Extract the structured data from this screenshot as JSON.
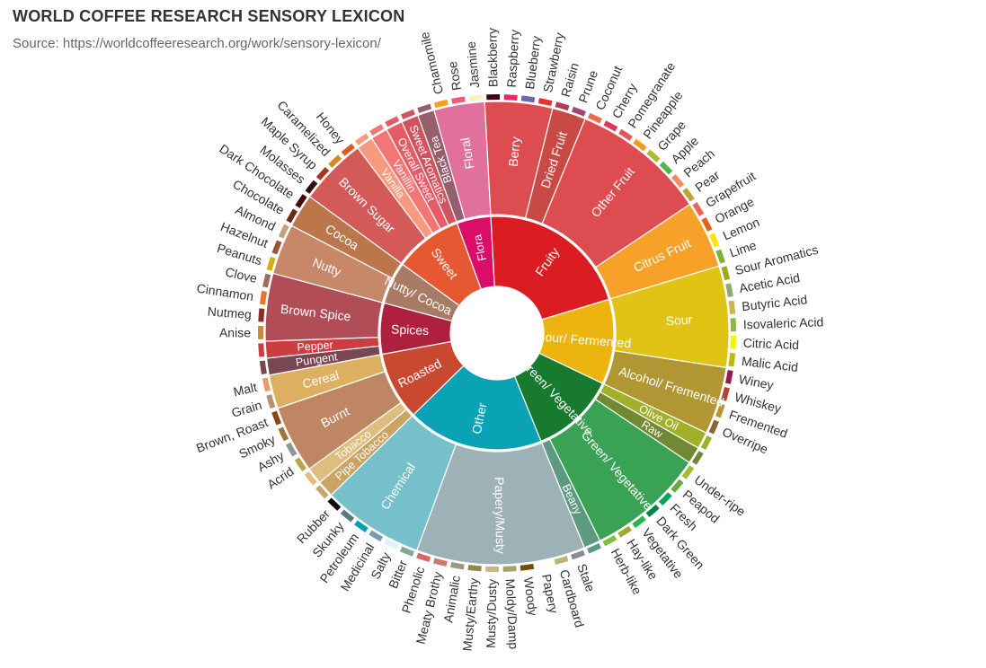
{
  "header": {
    "title": "WORLD COFFEE RESEARCH SENSORY LEXICON",
    "subtitle": "Source: https://worldcoffeeresearch.org/work/sensory-lexicon/"
  },
  "chart_data": {
    "type": "sunburst",
    "title": "WORLD COFFEE RESEARCH SENSORY LEXICON",
    "subtitle": "Source: https://worldcoffeeresearch.org/work/sensory-lexicon/",
    "children": [
      {
        "name": "Flora",
        "color": "#da0d68",
        "children": [
          {
            "name": "Black Tea",
            "color": "#975e6d",
            "children": [
              {
                "name": "",
                "color": "#975e6d"
              }
            ]
          },
          {
            "name": "Floral",
            "color": "#e0719c",
            "children": [
              {
                "name": "Chamomile",
                "color": "#f99e1c"
              },
              {
                "name": "Rose",
                "color": "#ef5a78"
              },
              {
                "name": "Jasmine",
                "color": "#f7f1bd"
              }
            ]
          }
        ]
      },
      {
        "name": "Fruity",
        "color": "#da1d23",
        "children": [
          {
            "name": "Berry",
            "color": "#dd4c51",
            "children": [
              {
                "name": "Blackberry",
                "color": "#3e0317"
              },
              {
                "name": "Raspberry",
                "color": "#e62969"
              },
              {
                "name": "Blueberry",
                "color": "#6569b0"
              },
              {
                "name": "Strawberry",
                "color": "#ef2d36"
              }
            ]
          },
          {
            "name": "Dried Fruit",
            "color": "#c94a44",
            "children": [
              {
                "name": "Raisin",
                "color": "#b53b54"
              },
              {
                "name": "Prune",
                "color": "#a5446f"
              }
            ]
          },
          {
            "name": "Other Fruit",
            "color": "#dd4c51",
            "children": [
              {
                "name": "Coconut",
                "color": "#f2684b"
              },
              {
                "name": "Cherry",
                "color": "#e73451"
              },
              {
                "name": "Pomegranate",
                "color": "#e65656"
              },
              {
                "name": "Pineapple",
                "color": "#f89a1c"
              },
              {
                "name": "Grape",
                "color": "#aeb92c"
              },
              {
                "name": "Apple",
                "color": "#4eb849"
              },
              {
                "name": "Peach",
                "color": "#f68a5c"
              },
              {
                "name": "Pear",
                "color": "#baa635"
              }
            ]
          },
          {
            "name": "Citrus Fruit",
            "color": "#f7a128",
            "children": [
              {
                "name": "Grapefruit",
                "color": "#f26355"
              },
              {
                "name": "Orange",
                "color": "#e2631e"
              },
              {
                "name": "Lemon",
                "color": "#fde404"
              },
              {
                "name": "Lime",
                "color": "#7eb138"
              }
            ]
          }
        ]
      },
      {
        "name": "Sour/ Fermented",
        "color": "#ebb40f",
        "children": [
          {
            "name": "Sour",
            "color": "#e1c315",
            "children": [
              {
                "name": "Sour Aromatics",
                "color": "#9ea718"
              },
              {
                "name": "Acetic Acid",
                "color": "#94a76f"
              },
              {
                "name": "Butyric Acid",
                "color": "#d0b24f"
              },
              {
                "name": "Isovaleric Acid",
                "color": "#8eb646"
              },
              {
                "name": "Citric Acid",
                "color": "#faef07"
              },
              {
                "name": "Malic Acid",
                "color": "#c1ba07"
              }
            ]
          },
          {
            "name": "Alcohol/ Fremented",
            "color": "#b09733",
            "children": [
              {
                "name": "Winey",
                "color": "#8f1c53"
              },
              {
                "name": "Whiskey",
                "color": "#b34039"
              },
              {
                "name": "Fremented",
                "color": "#ba9232"
              },
              {
                "name": "Overripe",
                "color": "#8b6439"
              }
            ]
          }
        ]
      },
      {
        "name": "Green/ Vegetative",
        "color": "#187a2f",
        "children": [
          {
            "name": "Olive Oil",
            "color": "#a2b029",
            "children": [
              {
                "name": "",
                "color": "#a2b029"
              }
            ]
          },
          {
            "name": "Raw",
            "color": "#718933",
            "children": [
              {
                "name": "",
                "color": "#718933"
              }
            ]
          },
          {
            "name": "Green/ Vegetative",
            "color": "#3aa255",
            "children": [
              {
                "name": "Under-ripe",
                "color": "#a2bb2b"
              },
              {
                "name": "Peapod",
                "color": "#62aa3c"
              },
              {
                "name": "Fresh",
                "color": "#03a653"
              },
              {
                "name": "Dark Green",
                "color": "#038549"
              },
              {
                "name": "Vegetative",
                "color": "#28b44b"
              },
              {
                "name": "Hay-like",
                "color": "#a3a830"
              },
              {
                "name": "Herb-like",
                "color": "#7ac141"
              }
            ]
          },
          {
            "name": "Beany",
            "color": "#5e9a80",
            "children": [
              {
                "name": "",
                "color": "#5e9a80"
              }
            ]
          }
        ]
      },
      {
        "name": "Other",
        "color": "#0aa3b5",
        "children": [
          {
            "name": "Papery/Musty",
            "color": "#9db2b7",
            "children": [
              {
                "name": "Stale",
                "color": "#8b8c90"
              },
              {
                "name": "Cardboard",
                "color": "#beb276"
              },
              {
                "name": "Papery",
                "color": "#fefef4"
              },
              {
                "name": "Woody",
                "color": "#744e03"
              },
              {
                "name": "Moldy/Damp",
                "color": "#a3a36f"
              },
              {
                "name": "Musty/Dusty",
                "color": "#c9b583"
              },
              {
                "name": "Musty/Earthy",
                "color": "#978847"
              },
              {
                "name": "Animalic",
                "color": "#9d977f"
              },
              {
                "name": "Meaty Brothy",
                "color": "#cc7b6a"
              },
              {
                "name": "Phenolic",
                "color": "#db646a"
              }
            ]
          },
          {
            "name": "Chemical",
            "color": "#76c0cb",
            "children": [
              {
                "name": "Bitter",
                "color": "#80a89d"
              },
              {
                "name": "Salty",
                "color": "#def2fd"
              },
              {
                "name": "Medicinal",
                "color": "#7a9bae"
              },
              {
                "name": "Petroleum",
                "color": "#039fb8"
              },
              {
                "name": "Skunky",
                "color": "#5e777b"
              },
              {
                "name": "Rubber",
                "color": "#120c0c"
              }
            ]
          }
        ]
      },
      {
        "name": "Roasted",
        "color": "#c94930",
        "children": [
          {
            "name": "Pipe Tobacco",
            "color": "#caa465",
            "children": [
              {
                "name": "",
                "color": "#caa465"
              }
            ]
          },
          {
            "name": "Tobacco",
            "color": "#dfbd7e",
            "children": [
              {
                "name": "",
                "color": "#dfbd7e"
              }
            ]
          },
          {
            "name": "Burnt",
            "color": "#be8663",
            "children": [
              {
                "name": "Acrid",
                "color": "#b9a449"
              },
              {
                "name": "Ashy",
                "color": "#899893"
              },
              {
                "name": "Smoky",
                "color": "#a1743b"
              },
              {
                "name": "Brown, Roast",
                "color": "#894810"
              }
            ]
          },
          {
            "name": "Cereal",
            "color": "#ddaf61",
            "children": [
              {
                "name": "Grain",
                "color": "#b7906f"
              },
              {
                "name": "Malt",
                "color": "#eb9d5f"
              }
            ]
          }
        ]
      },
      {
        "name": "Spices",
        "color": "#ad213e",
        "children": [
          {
            "name": "Pungent",
            "color": "#794752",
            "children": [
              {
                "name": "",
                "color": "#794752"
              }
            ]
          },
          {
            "name": "Pepper",
            "color": "#cc3d41",
            "children": [
              {
                "name": "",
                "color": "#cc3d41"
              }
            ]
          },
          {
            "name": "Brown Spice",
            "color": "#b14d57",
            "children": [
              {
                "name": "Anise",
                "color": "#c78936"
              },
              {
                "name": "Nutmeg",
                "color": "#8c292c"
              },
              {
                "name": "Cinnamon",
                "color": "#e5762e"
              },
              {
                "name": "Clove",
                "color": "#a16c5a"
              }
            ]
          }
        ]
      },
      {
        "name": "Nutty/ Cocoa",
        "color": "#a87b64",
        "children": [
          {
            "name": "Nutty",
            "color": "#c78869",
            "children": [
              {
                "name": "Peanuts",
                "color": "#d4ad12"
              },
              {
                "name": "Hazelnut",
                "color": "#9d5433"
              },
              {
                "name": "Almond",
                "color": "#c89f83"
              }
            ]
          },
          {
            "name": "Cocoa",
            "color": "#bb764c",
            "children": [
              {
                "name": "Chocolate",
                "color": "#692a19"
              },
              {
                "name": "Dark Chocolate",
                "color": "#470604"
              }
            ]
          }
        ]
      },
      {
        "name": "Sweet",
        "color": "#e65832",
        "children": [
          {
            "name": "Brown Sugar",
            "color": "#d45a59",
            "children": [
              {
                "name": "Molasses",
                "color": "#310d0f"
              },
              {
                "name": "Maple Syrup",
                "color": "#ae341f"
              },
              {
                "name": "Caramelized",
                "color": "#d78823"
              },
              {
                "name": "Honey",
                "color": "#da5c1f"
              }
            ]
          },
          {
            "name": "Vanilla",
            "color": "#f89a80",
            "children": [
              {
                "name": "",
                "color": "#f89a80"
              }
            ]
          },
          {
            "name": "Vanillin",
            "color": "#f37674",
            "children": [
              {
                "name": "",
                "color": "#f37674"
              }
            ]
          },
          {
            "name": "Overall Sweet",
            "color": "#e75b68",
            "children": [
              {
                "name": "",
                "color": "#e75b68"
              }
            ]
          },
          {
            "name": "Sweet Aromatics",
            "color": "#d0545f",
            "children": [
              {
                "name": "",
                "color": "#d0545f"
              }
            ]
          }
        ]
      }
    ]
  }
}
